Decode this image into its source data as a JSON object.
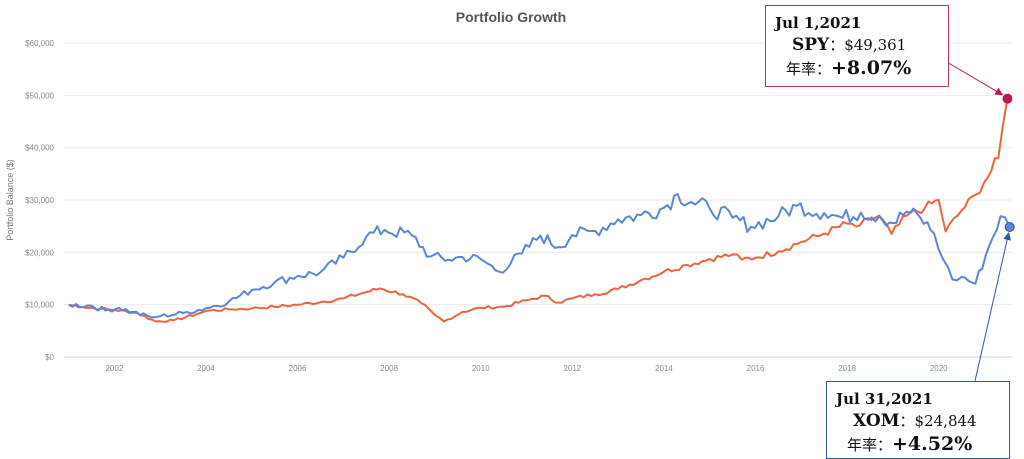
{
  "chart_data": {
    "type": "line",
    "title": "Portfolio Growth",
    "ylabel": "Portfolio Balance ($)",
    "xlabel": "",
    "xlim": [
      2000.9,
      2021.6
    ],
    "ylim": [
      0,
      60000
    ],
    "yticks": [
      0,
      10000,
      20000,
      30000,
      40000,
      50000,
      60000
    ],
    "ytick_labels": [
      "$0",
      "$10,000",
      "$20,000",
      "$30,000",
      "$40,000",
      "$50,000",
      "$60,000"
    ],
    "xticks": [
      2002,
      2004,
      2006,
      2008,
      2010,
      2012,
      2014,
      2016,
      2018,
      2020
    ],
    "grid": true,
    "series": [
      {
        "name": "SPY",
        "color": "#f0643c",
        "points": [
          [
            2001.0,
            10000
          ],
          [
            2001.3,
            9600
          ],
          [
            2001.7,
            9200
          ],
          [
            2002.0,
            9000
          ],
          [
            2002.5,
            8400
          ],
          [
            2002.9,
            6800
          ],
          [
            2003.3,
            7000
          ],
          [
            2003.8,
            8200
          ],
          [
            2004.0,
            8800
          ],
          [
            2004.5,
            9100
          ],
          [
            2005.0,
            9300
          ],
          [
            2005.5,
            9600
          ],
          [
            2006.0,
            10000
          ],
          [
            2006.5,
            10500
          ],
          [
            2007.0,
            11200
          ],
          [
            2007.5,
            12400
          ],
          [
            2007.8,
            13100
          ],
          [
            2008.3,
            12000
          ],
          [
            2008.7,
            10300
          ],
          [
            2009.0,
            8000
          ],
          [
            2009.2,
            6800
          ],
          [
            2009.6,
            8600
          ],
          [
            2010.0,
            9400
          ],
          [
            2010.5,
            9600
          ],
          [
            2011.0,
            10800
          ],
          [
            2011.4,
            11700
          ],
          [
            2011.7,
            10400
          ],
          [
            2012.0,
            11200
          ],
          [
            2012.5,
            12000
          ],
          [
            2013.0,
            13000
          ],
          [
            2013.5,
            14700
          ],
          [
            2014.0,
            16300
          ],
          [
            2014.5,
            17600
          ],
          [
            2015.0,
            18700
          ],
          [
            2015.5,
            19600
          ],
          [
            2015.7,
            18600
          ],
          [
            2016.0,
            19000
          ],
          [
            2016.5,
            20200
          ],
          [
            2017.0,
            22000
          ],
          [
            2017.5,
            23600
          ],
          [
            2018.0,
            25500
          ],
          [
            2018.2,
            24900
          ],
          [
            2018.7,
            27000
          ],
          [
            2018.97,
            23500
          ],
          [
            2019.3,
            27000
          ],
          [
            2019.7,
            28500
          ],
          [
            2020.0,
            30000
          ],
          [
            2020.15,
            24000
          ],
          [
            2020.5,
            28000
          ],
          [
            2020.8,
            31000
          ],
          [
            2021.0,
            33500
          ],
          [
            2021.3,
            38000
          ],
          [
            2021.5,
            49361
          ]
        ]
      },
      {
        "name": "XOM",
        "color": "#5b87d6",
        "points": [
          [
            2001.0,
            10000
          ],
          [
            2001.5,
            9800
          ],
          [
            2001.8,
            8900
          ],
          [
            2002.1,
            9400
          ],
          [
            2002.4,
            8600
          ],
          [
            2002.8,
            7600
          ],
          [
            2003.0,
            7800
          ],
          [
            2003.5,
            8400
          ],
          [
            2004.0,
            9300
          ],
          [
            2004.5,
            10600
          ],
          [
            2005.0,
            12800
          ],
          [
            2005.5,
            14300
          ],
          [
            2006.0,
            15500
          ],
          [
            2006.5,
            16200
          ],
          [
            2007.0,
            19000
          ],
          [
            2007.5,
            23000
          ],
          [
            2007.9,
            24300
          ],
          [
            2008.5,
            23200
          ],
          [
            2008.9,
            19200
          ],
          [
            2009.3,
            18600
          ],
          [
            2009.6,
            19100
          ],
          [
            2010.0,
            18700
          ],
          [
            2010.4,
            16300
          ],
          [
            2010.9,
            19800
          ],
          [
            2011.3,
            23200
          ],
          [
            2011.7,
            21000
          ],
          [
            2012.0,
            23300
          ],
          [
            2012.5,
            24100
          ],
          [
            2013.0,
            26300
          ],
          [
            2013.5,
            27100
          ],
          [
            2014.0,
            28500
          ],
          [
            2014.3,
            31100
          ],
          [
            2014.6,
            29600
          ],
          [
            2015.0,
            28400
          ],
          [
            2015.5,
            26600
          ],
          [
            2015.9,
            24900
          ],
          [
            2016.5,
            26900
          ],
          [
            2016.9,
            28900
          ],
          [
            2017.5,
            27500
          ],
          [
            2017.9,
            26600
          ],
          [
            2018.3,
            27600
          ],
          [
            2018.7,
            26900
          ],
          [
            2019.0,
            25600
          ],
          [
            2019.3,
            27800
          ],
          [
            2019.6,
            26600
          ],
          [
            2019.9,
            23600
          ],
          [
            2020.1,
            18600
          ],
          [
            2020.3,
            14800
          ],
          [
            2020.5,
            15300
          ],
          [
            2020.8,
            14000
          ],
          [
            2021.1,
            21200
          ],
          [
            2021.35,
            26900
          ],
          [
            2021.55,
            24844
          ]
        ]
      }
    ],
    "annotations": [
      {
        "series": "SPY",
        "date": "Jul 1,2021",
        "value_label": "$49,361",
        "rate_label": "年率：",
        "rate": "+8.07%"
      },
      {
        "series": "XOM",
        "date": "Jul 31,2021",
        "value_label": "$24,844",
        "rate_label": "年率：",
        "rate": "+4.52%"
      }
    ]
  },
  "callouts": {
    "spy": {
      "date": "Jul 1,2021",
      "ticker": "SPY",
      "sep": "：",
      "value": "$49,361",
      "rate_label": "年率：",
      "rate": "+8.07%"
    },
    "xom": {
      "date": "Jul 31,2021",
      "ticker": "XOM",
      "sep": "：",
      "value": "$24,844",
      "rate_label": "年率：",
      "rate": "+4.52%"
    }
  }
}
